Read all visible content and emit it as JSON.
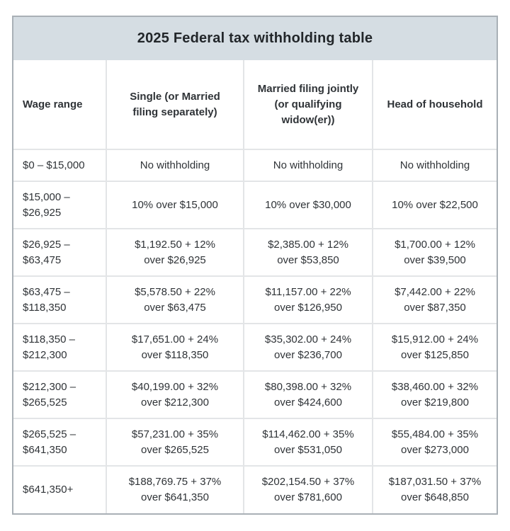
{
  "page": {
    "title": "2025 Federal tax withholding table"
  },
  "table": {
    "headers": [
      "Wage range",
      "Single (or Married\nfiling separately)",
      "Married filing jointly\n(or qualifying\nwidow(er))",
      "Head of household"
    ],
    "rows": [
      [
        "$0 – $15,000",
        "No withholding",
        "No withholding",
        "No withholding"
      ],
      [
        "$15,000 –\n$26,925",
        "10% over $15,000",
        "10% over $30,000",
        "10% over $22,500"
      ],
      [
        "$26,925 –\n$63,475",
        "$1,192.50 + 12%\nover $26,925",
        "$2,385.00 + 12%\nover $53,850",
        "$1,700.00 + 12%\nover $39,500"
      ],
      [
        "$63,475 –\n$118,350",
        "$5,578.50 + 22%\nover $63,475",
        "$11,157.00 + 22%\nover $126,950",
        "$7,442.00 + 22%\nover $87,350"
      ],
      [
        "$118,350 –\n$212,300",
        "$17,651.00 + 24%\nover $118,350",
        "$35,302.00 + 24%\nover $236,700",
        "$15,912.00 + 24%\nover $125,850"
      ],
      [
        "$212,300 –\n$265,525",
        "$40,199.00 + 32%\nover $212,300",
        "$80,398.00 + 32%\nover $424,600",
        "$38,460.00 + 32%\nover $219,800"
      ],
      [
        "$265,525 –\n$641,350",
        "$57,231.00 + 35%\nover $265,525",
        "$114,462.00 + 35%\nover $531,050",
        "$55,484.00 + 35%\nover $273,000"
      ],
      [
        "$641,350+",
        "$188,769.75 + 37%\nover $641,350",
        "$202,154.50 + 37%\nover $781,600",
        "$187,031.50 + 37%\nover $648,850"
      ]
    ]
  },
  "colors": {
    "title_bg": "#d5dde3",
    "outer_border": "#a9b0b6",
    "inner_border": "#e3e5e7",
    "text": "#2f3337"
  }
}
